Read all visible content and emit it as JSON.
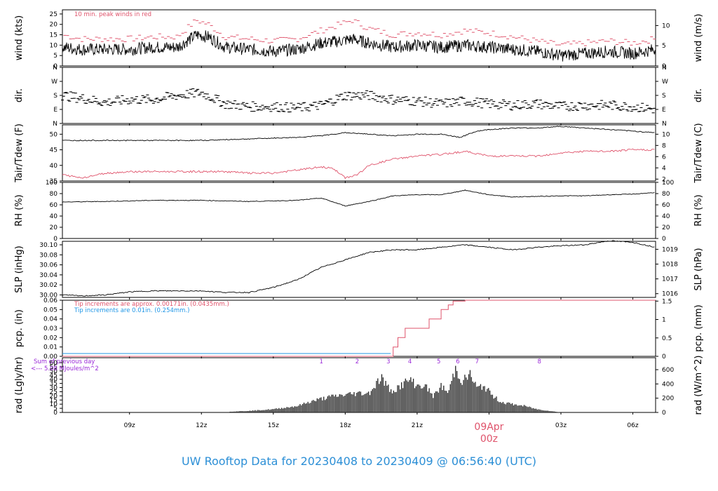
{
  "title": "UW Rooftop Data for 20230408  to  20230409 @ 06:56:40  (UTC)",
  "colors": {
    "red": "#df536b",
    "blue": "#2297e6",
    "purple": "#9a28d8",
    "black": "#000000"
  },
  "x_axis": {
    "ticks": [
      "09z",
      "12z",
      "15z",
      "18z",
      "21z",
      "00z",
      "03z",
      "06z"
    ],
    "tick_hours": [
      9,
      12,
      15,
      18,
      21,
      24,
      27,
      30
    ],
    "range_hours": [
      6.2,
      30.95
    ],
    "date_label": "09Apr",
    "date_tick": "00z"
  },
  "chart_data": [
    {
      "type": "line",
      "panel": "wind",
      "ylabel_left": "wind (kts)",
      "ylabel_right": "wind (m/s)",
      "ylim": [
        0,
        27
      ],
      "left_ticks": [
        0,
        5,
        10,
        15,
        20,
        25
      ],
      "right_ticks": [
        0,
        5,
        10
      ],
      "annotation": "10 min. peak winds in red",
      "series": [
        {
          "x": [
            6.2,
            7,
            8,
            9,
            10,
            11,
            11.8,
            12.3,
            13,
            14,
            15,
            16,
            17,
            17.8,
            18.3,
            19,
            20,
            21,
            22,
            23,
            24,
            25,
            26,
            27,
            28,
            29,
            30,
            30.95
          ],
          "values": [
            9,
            8,
            8,
            8,
            9,
            9,
            15,
            14,
            9,
            8,
            7,
            8,
            11,
            12,
            13,
            11,
            9,
            10,
            9,
            10,
            9,
            8,
            7,
            5,
            6,
            7,
            6,
            8
          ]
        },
        {
          "x": [
            6.2,
            7,
            8,
            9,
            10,
            11,
            11.8,
            12.3,
            13,
            14,
            15,
            16,
            17,
            17.8,
            18.3,
            19,
            20,
            21,
            22,
            23,
            24,
            25,
            26,
            27,
            28,
            29,
            30,
            30.95
          ],
          "values": [
            15,
            13,
            13,
            13,
            14,
            14,
            22,
            20,
            14,
            13,
            12,
            13,
            17,
            20,
            22,
            18,
            15,
            16,
            15,
            17,
            16,
            14,
            12,
            10,
            11,
            12,
            11,
            13
          ]
        }
      ]
    },
    {
      "type": "scatter",
      "panel": "dir",
      "ylabel_left": "dir.",
      "ylabel_right": "dir.",
      "ylim": [
        0,
        4
      ],
      "left_ticks": [
        "N",
        "E",
        "S",
        "W",
        "N"
      ],
      "right_ticks": [
        "N",
        "E",
        "S",
        "W",
        "N"
      ],
      "series": [
        {
          "x": [
            6.2,
            7,
            8,
            9,
            10,
            11,
            12,
            13,
            14,
            15,
            16,
            17,
            18,
            19,
            20,
            21,
            22,
            23,
            24,
            25,
            26,
            27,
            28,
            29,
            30,
            30.95
          ],
          "values": [
            2,
            1.8,
            1.5,
            1.7,
            1.7,
            2,
            2.2,
            1.4,
            1.2,
            1.2,
            1.1,
            1.3,
            2,
            2,
            1.7,
            1.6,
            1.4,
            1.6,
            1.4,
            1.3,
            1.4,
            1.2,
            1.3,
            1.3,
            1.2,
            1
          ]
        }
      ]
    },
    {
      "type": "line",
      "panel": "temp",
      "ylabel_left": "Tair/Tdew (F)",
      "ylabel_right": "Tair/Tdew (C)",
      "ylim": [
        35,
        53
      ],
      "left_ticks": [
        35,
        40,
        45,
        50
      ],
      "right_ticks": [
        2,
        4,
        6,
        8,
        10
      ],
      "series": [
        {
          "x": [
            6.2,
            8,
            10,
            12,
            14,
            16,
            17,
            18,
            19,
            20,
            21,
            22,
            22.8,
            23.5,
            24,
            25,
            26,
            27,
            28,
            29,
            30,
            30.95
          ],
          "values": [
            48,
            48,
            48,
            48,
            48.5,
            49,
            49.5,
            50.5,
            50,
            49.5,
            50,
            50,
            49,
            51,
            51.5,
            52,
            52,
            52.5,
            52,
            51.5,
            51,
            50.5
          ]
        },
        {
          "x": [
            6.2,
            7,
            8,
            9,
            10,
            11,
            12,
            13,
            14,
            15,
            16,
            17,
            17.5,
            18,
            18.5,
            19,
            20,
            21,
            22,
            23,
            24,
            25,
            26,
            27,
            28,
            29,
            30,
            30.95
          ],
          "values": [
            37,
            36,
            37.5,
            38,
            38,
            38,
            38,
            38,
            37.5,
            37.5,
            38.5,
            39.5,
            39,
            36,
            37,
            40,
            42,
            43,
            43.5,
            44.5,
            43,
            43,
            43,
            44,
            44.5,
            44.5,
            45,
            45
          ]
        }
      ]
    },
    {
      "type": "line",
      "panel": "rh",
      "ylabel_left": "RH (%)",
      "ylabel_right": "RH (%)",
      "ylim": [
        0,
        100
      ],
      "left_ticks": [
        0,
        20,
        40,
        60,
        80,
        100
      ],
      "right_ticks": [
        0,
        20,
        40,
        60,
        80,
        100
      ],
      "series": [
        {
          "x": [
            6.2,
            8,
            10,
            12,
            14,
            16,
            17,
            18,
            18.5,
            19,
            20,
            21,
            22,
            23,
            24,
            25,
            26,
            27,
            28,
            29,
            30,
            30.95
          ],
          "values": [
            65,
            66,
            68,
            68,
            66,
            68,
            72,
            58,
            62,
            66,
            76,
            78,
            78,
            86,
            78,
            74,
            75,
            76,
            76,
            78,
            79,
            82
          ]
        }
      ]
    },
    {
      "type": "line",
      "panel": "slp",
      "ylabel_left": "SLP (inHg)",
      "ylabel_right": "SLP (hPa)",
      "ylim": [
        29.995,
        30.107
      ],
      "left_ticks": [
        30.0,
        30.02,
        30.04,
        30.06,
        30.08,
        30.1
      ],
      "left_tick_labels": [
        "30.00",
        "30.02",
        "30.04",
        "30.06",
        "30.08",
        "30.10"
      ],
      "right_ticks": [
        1016,
        1017,
        1018,
        1019
      ],
      "series": [
        {
          "x": [
            6.2,
            7,
            8,
            9,
            10,
            11,
            12,
            13,
            14,
            15,
            16,
            17,
            18,
            19,
            20,
            21,
            22,
            23,
            24,
            25,
            26,
            27,
            28,
            29,
            30,
            30.95
          ],
          "values": [
            30.0,
            29.998,
            30.0,
            30.006,
            30.008,
            30.008,
            30.008,
            30.005,
            30.005,
            30.015,
            30.03,
            30.055,
            30.07,
            30.085,
            30.09,
            30.09,
            30.095,
            30.1,
            30.095,
            30.09,
            30.095,
            30.098,
            30.1,
            30.108,
            30.105,
            30.095
          ]
        }
      ]
    },
    {
      "type": "line",
      "panel": "pcp",
      "ylabel_left": "pcp. (in)",
      "ylabel_right": "pcp. (mm)",
      "ylim": [
        0,
        0.06
      ],
      "left_ticks": [
        0,
        0.01,
        0.02,
        0.03,
        0.04,
        0.05,
        0.06
      ],
      "left_tick_labels": [
        "0.00",
        "0.01",
        "0.02",
        "0.03",
        "0.04",
        "0.05",
        "0.06"
      ],
      "right_ticks": [
        0,
        0.5,
        1,
        1.5
      ],
      "notes": [
        "Tip increments are approx. 0.00171in. (0.0435mm.)",
        "Tip increments are 0.01in. (0.254mm.)"
      ],
      "series": [
        {
          "x": [
            6.2,
            20,
            20,
            20.2,
            20.2,
            20.5,
            20.5,
            21.5,
            21.5,
            22,
            22,
            22.3,
            22.3,
            22.5,
            22.5,
            23,
            23,
            30.95
          ],
          "values": [
            0,
            0,
            0.01,
            0.01,
            0.02,
            0.02,
            0.03,
            0.03,
            0.04,
            0.04,
            0.05,
            0.05,
            0.055,
            0.055,
            0.059,
            0.059,
            0.06,
            0.06
          ]
        }
      ]
    },
    {
      "type": "area",
      "panel": "rad",
      "ylabel_left": "rad (Lgly/hr)",
      "ylabel_right": "rad (W/m^2)",
      "ylim": [
        0,
        66
      ],
      "left_ticks": [
        0,
        5,
        10,
        15,
        20,
        25,
        30,
        35,
        40,
        45,
        50,
        55,
        60
      ],
      "right_ticks": [
        0,
        200,
        400,
        600
      ],
      "notes": [
        "Sum of previous day",
        "<--- 5.08 MJoules/m^2"
      ],
      "markers": [
        "1",
        "2",
        "3",
        "4",
        "5",
        "6",
        "7",
        "8"
      ],
      "marker_hours": [
        17.0,
        18.5,
        19.8,
        20.7,
        21.9,
        22.7,
        23.5,
        26.1
      ],
      "series": [
        {
          "x": [
            13.2,
            14,
            15,
            16,
            16.5,
            17,
            17.5,
            18,
            18.5,
            19,
            19.5,
            19.9,
            20.3,
            20.7,
            21,
            21.3,
            21.7,
            22,
            22.3,
            22.6,
            22.9,
            23.2,
            23.5,
            23.8,
            24.1,
            24.5,
            25,
            25.5,
            26,
            26.5,
            27
          ],
          "values": [
            1,
            2,
            4,
            8,
            13,
            17,
            20,
            22,
            24,
            24,
            44,
            26,
            33,
            41,
            33,
            34,
            20,
            33,
            24,
            55,
            38,
            48,
            30,
            33,
            22,
            13,
            10,
            8,
            4,
            2,
            0
          ]
        }
      ]
    }
  ]
}
